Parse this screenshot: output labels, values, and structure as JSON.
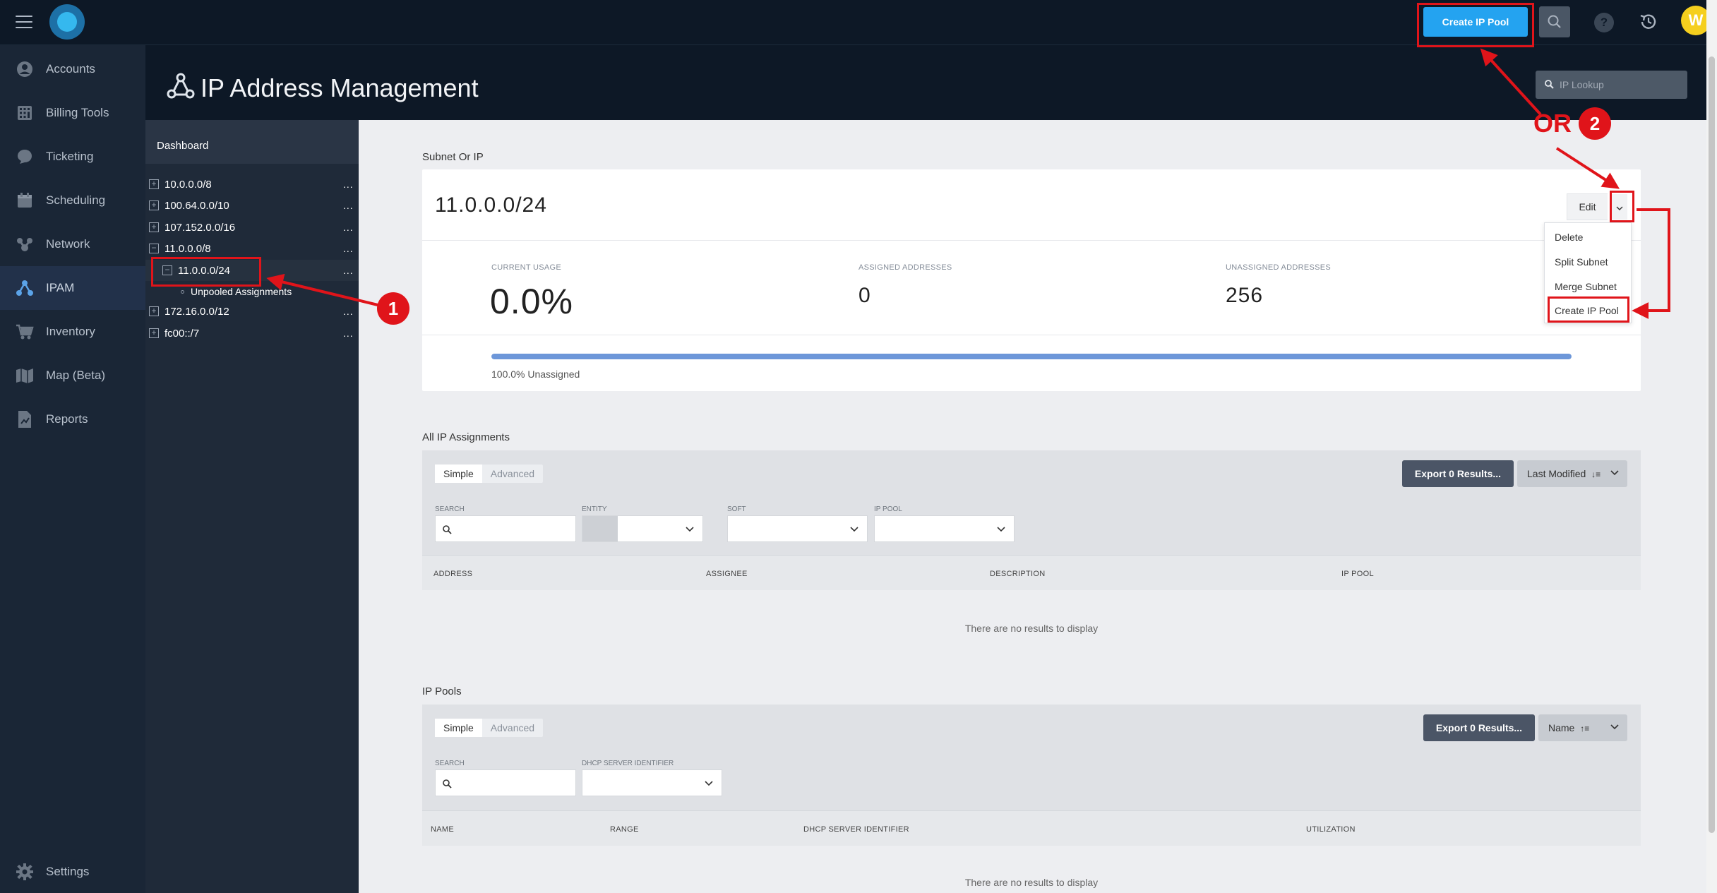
{
  "topbar": {
    "create_ip_pool_label": "Create IP Pool",
    "help_label": "?",
    "avatar_initial": "W"
  },
  "sidebar": {
    "items": [
      {
        "label": "Accounts",
        "icon": "user-icon"
      },
      {
        "label": "Billing Tools",
        "icon": "calculator-icon"
      },
      {
        "label": "Ticketing",
        "icon": "chat-icon"
      },
      {
        "label": "Scheduling",
        "icon": "calendar-icon"
      },
      {
        "label": "Network",
        "icon": "network-icon"
      },
      {
        "label": "IPAM",
        "icon": "ipam-icon",
        "active": true
      },
      {
        "label": "Inventory",
        "icon": "cart-icon"
      },
      {
        "label": "Map (Beta)",
        "icon": "map-icon"
      },
      {
        "label": "Reports",
        "icon": "report-icon"
      }
    ],
    "settings_label": "Settings"
  },
  "header": {
    "title": "IP Address Management",
    "ip_lookup_placeholder": "IP Lookup"
  },
  "tree": {
    "dashboard_label": "Dashboard",
    "rows": [
      {
        "label": "10.0.0.0/8",
        "toggle": "+"
      },
      {
        "label": "100.64.0.0/10",
        "toggle": "+"
      },
      {
        "label": "107.152.0.0/16",
        "toggle": "+"
      },
      {
        "label": "11.0.0.0/8",
        "toggle": "−"
      },
      {
        "label": "11.0.0.0/24",
        "toggle": "−"
      },
      {
        "label": "Unpooled Assignments"
      },
      {
        "label": "172.16.0.0/12",
        "toggle": "+"
      },
      {
        "label": "fc00::/7",
        "toggle": "+"
      }
    ],
    "dots": "..."
  },
  "subnet": {
    "section_title": "Subnet Or IP",
    "value": "11.0.0.0/24",
    "edit_label": "Edit",
    "stats": {
      "current_usage_label": "CURRENT USAGE",
      "current_usage_value": "0.0%",
      "assigned_label": "ASSIGNED ADDRESSES",
      "assigned_value": "0",
      "unassigned_label": "UNASSIGNED ADDRESSES",
      "unassigned_value": "256"
    },
    "unassigned_fraction": 1.0,
    "usage_text": "100.0% Unassigned",
    "menu": [
      "Delete",
      "Split Subnet",
      "Merge Subnet",
      "Create IP Pool"
    ]
  },
  "assignments": {
    "section_title": "All IP Assignments",
    "tab_simple": "Simple",
    "tab_advanced": "Advanced",
    "filter_labels": [
      "SEARCH",
      "ENTITY",
      "SOFT",
      "IP POOL"
    ],
    "export_label": "Export 0 Results...",
    "sort_label": "Last Modified",
    "columns": [
      "ADDRESS",
      "ASSIGNEE",
      "DESCRIPTION",
      "IP POOL"
    ],
    "empty_text": "There are no results to display"
  },
  "pools": {
    "section_title": "IP Pools",
    "tab_simple": "Simple",
    "tab_advanced": "Advanced",
    "filter_labels": [
      "SEARCH",
      "DHCP SERVER IDENTIFIER"
    ],
    "export_label": "Export 0 Results...",
    "sort_label": "Name",
    "columns": [
      "NAME",
      "RANGE",
      "DHCP SERVER IDENTIFIER",
      "UTILIZATION"
    ],
    "empty_text": "There are no results to display"
  },
  "annotations": {
    "step1": "1",
    "step2": "2",
    "or_text": "OR"
  },
  "colors": {
    "accent": "#24a3f0",
    "annotation": "#e0141a",
    "usage_bar": "#6d97d9"
  }
}
